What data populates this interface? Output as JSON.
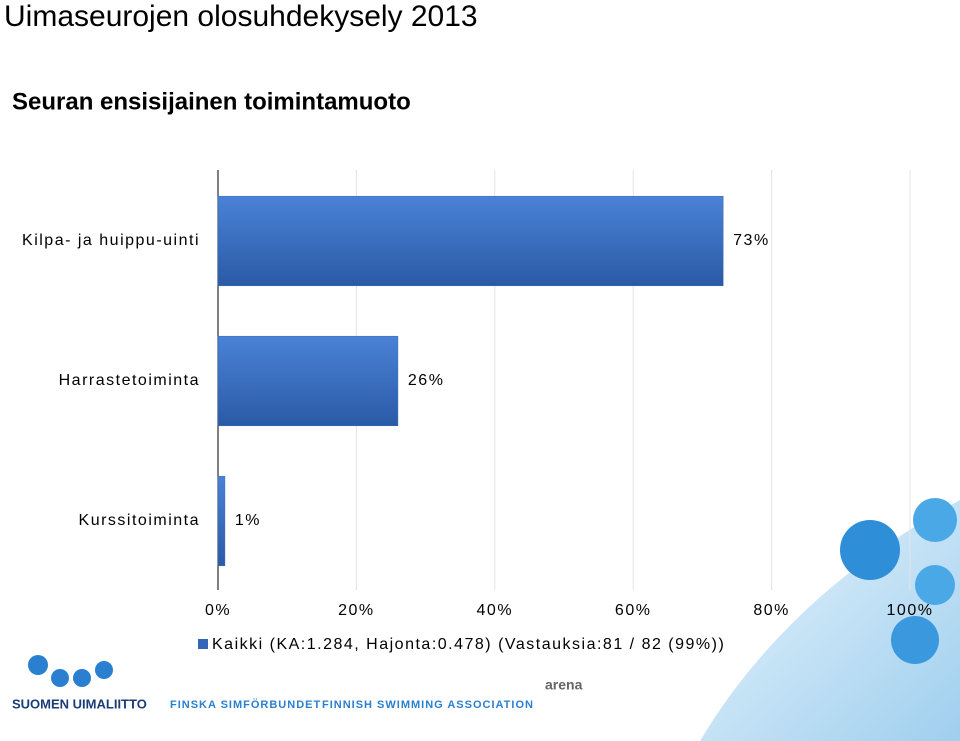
{
  "chart_data": {
    "type": "bar",
    "orientation": "horizontal",
    "title": "Uimaseurojen olosuhdekysely 2013",
    "subtitle": "Seuran ensisijainen toimintamuoto",
    "categories": [
      "Kilpa- ja huippu-uinti",
      "Harrastetoiminta",
      "Kurssitoiminta"
    ],
    "series": [
      {
        "name": "Kaikki (KA:1.284, Hajonta:0.478) (Vastauksia:81 / 82 (99%))",
        "color": "#3366b8",
        "values": [
          73,
          26,
          1
        ],
        "value_labels": [
          "73%",
          "26%",
          "1%"
        ]
      }
    ],
    "xlim": [
      0,
      100
    ],
    "xticks": [
      {
        "value": 0,
        "label": "0%"
      },
      {
        "value": 20,
        "label": "20%"
      },
      {
        "value": 40,
        "label": "40%"
      },
      {
        "value": 60,
        "label": "60%"
      },
      {
        "value": 80,
        "label": "80%"
      },
      {
        "value": 100,
        "label": "100%"
      }
    ],
    "grid": true
  },
  "footer": {
    "logo": "SUOMEN UIMALIITTO",
    "swedish": "FINSKA SIMFÖRBUNDET",
    "english": "FINNISH SWIMMING ASSOCIATION",
    "sponsor": "arena"
  }
}
